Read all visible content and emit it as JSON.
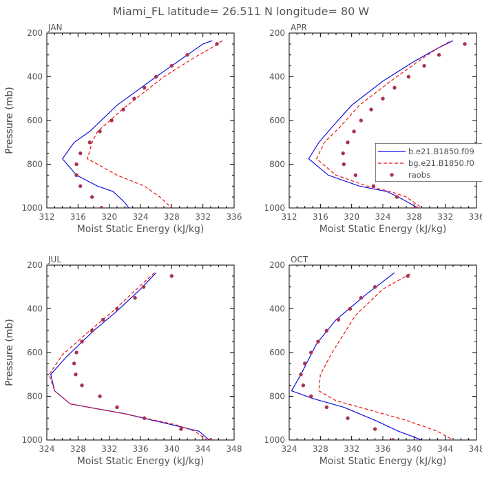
{
  "title": "Miami_FL   latitude= 26.511 N longitude= 80 W",
  "legend": {
    "entries": [
      "b.e21.B1850.f09",
      "bg.e21.B1850.f0",
      "raobs"
    ]
  },
  "colors": {
    "series1": "#1111dd",
    "series2": "#ee1111",
    "raobs": "#a83250",
    "text": "#555555"
  },
  "chart_data": [
    {
      "type": "line",
      "panel": "JAN",
      "xlabel": "Moist Static Energy (kJ/kg)",
      "ylabel": "Pressure (mb)",
      "xlim": [
        312,
        336
      ],
      "ylim": [
        200,
        1000
      ],
      "x_ticks": [
        312,
        316,
        320,
        324,
        328,
        332,
        336
      ],
      "y_ticks": [
        200,
        400,
        600,
        800,
        1000
      ],
      "y_inverted": true,
      "series": [
        {
          "style": "solid",
          "color": "#1111dd",
          "points": [
            [
              333.2,
              235
            ],
            [
              332,
              250
            ],
            [
              326,
              400
            ],
            [
              321,
              530
            ],
            [
              317.5,
              650
            ],
            [
              315.5,
              700
            ],
            [
              314,
              775
            ],
            [
              315.8,
              850
            ],
            [
              318.5,
              900
            ],
            [
              320.5,
              925
            ],
            [
              322,
              975
            ],
            [
              322.5,
              1000
            ]
          ]
        },
        {
          "style": "dashed",
          "color": "#ee1111",
          "points": [
            [
              334.5,
              235
            ],
            [
              333,
              270
            ],
            [
              331,
              310
            ],
            [
              327,
              400
            ],
            [
              322,
              540
            ],
            [
              318.5,
              650
            ],
            [
              317.8,
              700
            ],
            [
              317.2,
              775
            ],
            [
              318.5,
              800
            ],
            [
              321,
              850
            ],
            [
              324.5,
              900
            ],
            [
              326.5,
              950
            ],
            [
              328,
              1000
            ]
          ]
        },
        {
          "style": "points",
          "color": "#a83250",
          "points": [
            [
              333.8,
              250
            ],
            [
              330,
              300
            ],
            [
              328,
              350
            ],
            [
              326,
              400
            ],
            [
              324.5,
              450
            ],
            [
              323.2,
              500
            ],
            [
              321.8,
              550
            ],
            [
              320.3,
              600
            ],
            [
              318.8,
              650
            ],
            [
              317.5,
              700
            ],
            [
              316.3,
              750
            ],
            [
              315.8,
              800
            ],
            [
              315.8,
              850
            ],
            [
              316.3,
              900
            ],
            [
              317.8,
              950
            ],
            [
              319,
              1000
            ]
          ]
        }
      ]
    },
    {
      "type": "line",
      "panel": "APR",
      "xlabel": "Moist Static Energy (kJ/kg)",
      "ylabel": "Pressure (mb)",
      "xlim": [
        312,
        336
      ],
      "ylim": [
        200,
        1000
      ],
      "x_ticks": [
        312,
        316,
        320,
        324,
        328,
        332,
        336
      ],
      "y_ticks": [
        200,
        400,
        600,
        800,
        1000
      ],
      "y_inverted": true,
      "series": [
        {
          "style": "solid",
          "color": "#1111dd",
          "points": [
            [
              333,
              235
            ],
            [
              331,
              270
            ],
            [
              328,
              330
            ],
            [
              324,
              420
            ],
            [
              320,
              530
            ],
            [
              317.5,
              630
            ],
            [
              315.8,
              700
            ],
            [
              314.5,
              775
            ],
            [
              317,
              850
            ],
            [
              321,
              900
            ],
            [
              324.5,
              925
            ],
            [
              326,
              950
            ],
            [
              328.5,
              1000
            ]
          ]
        },
        {
          "style": "dashed",
          "color": "#ee1111",
          "points": [
            [
              332.5,
              240
            ],
            [
              331,
              270
            ],
            [
              328.5,
              330
            ],
            [
              325,
              420
            ],
            [
              321,
              530
            ],
            [
              318.5,
              630
            ],
            [
              316.5,
              700
            ],
            [
              315.5,
              775
            ],
            [
              318,
              850
            ],
            [
              322,
              900
            ],
            [
              325,
              925
            ],
            [
              327,
              950
            ],
            [
              329,
              1000
            ]
          ]
        },
        {
          "style": "points",
          "color": "#a83250",
          "points": [
            [
              334.5,
              250
            ],
            [
              331.2,
              300
            ],
            [
              329.3,
              350
            ],
            [
              327.3,
              400
            ],
            [
              325.5,
              450
            ],
            [
              324,
              500
            ],
            [
              322.5,
              550
            ],
            [
              321.2,
              600
            ],
            [
              320.3,
              650
            ],
            [
              319.5,
              700
            ],
            [
              318.9,
              750
            ],
            [
              319,
              800
            ],
            [
              320.5,
              850
            ],
            [
              322.8,
              900
            ],
            [
              325.8,
              950
            ],
            [
              328.2,
              1000
            ]
          ]
        }
      ]
    },
    {
      "type": "line",
      "panel": "JUL",
      "xlabel": "Moist Static Energy (kJ/kg)",
      "ylabel": "Pressure (mb)",
      "xlim": [
        324,
        348
      ],
      "ylim": [
        200,
        1000
      ],
      "x_ticks": [
        324,
        328,
        332,
        336,
        340,
        344,
        348
      ],
      "y_ticks": [
        200,
        400,
        600,
        800,
        1000
      ],
      "y_inverted": true,
      "series": [
        {
          "style": "solid",
          "color": "#1111dd",
          "points": [
            [
              338,
              235
            ],
            [
              336,
              310
            ],
            [
              333,
              410
            ],
            [
              330,
              500
            ],
            [
              326.5,
              620
            ],
            [
              324.5,
              700
            ],
            [
              325,
              775
            ],
            [
              327,
              835
            ],
            [
              334,
              880
            ],
            [
              340,
              930
            ],
            [
              343.5,
              960
            ],
            [
              344.8,
              1000
            ]
          ]
        },
        {
          "style": "dashed",
          "color": "#ee1111",
          "points": [
            [
              337.8,
              235
            ],
            [
              335.5,
              310
            ],
            [
              332.5,
              410
            ],
            [
              329.5,
              500
            ],
            [
              326,
              610
            ],
            [
              324.3,
              700
            ],
            [
              325,
              775
            ],
            [
              327,
              835
            ],
            [
              334,
              880
            ],
            [
              340.5,
              930
            ],
            [
              343,
              960
            ],
            [
              344.5,
              1000
            ]
          ]
        },
        {
          "style": "points",
          "color": "#a83250",
          "points": [
            [
              340,
              250
            ],
            [
              336.4,
              300
            ],
            [
              335.3,
              350
            ],
            [
              333,
              400
            ],
            [
              331.2,
              450
            ],
            [
              329.8,
              500
            ],
            [
              328.5,
              550
            ],
            [
              327.8,
              600
            ],
            [
              327.5,
              650
            ],
            [
              327.7,
              700
            ],
            [
              328.5,
              750
            ],
            [
              330.8,
              800
            ],
            [
              333,
              850
            ],
            [
              336.5,
              900
            ],
            [
              341.2,
              950
            ],
            [
              345,
              1000
            ]
          ]
        }
      ]
    },
    {
      "type": "line",
      "panel": "OCT",
      "xlabel": "Moist Static Energy (kJ/kg)",
      "ylabel": "Pressure (mb)",
      "xlim": [
        324,
        348
      ],
      "ylim": [
        200,
        1000
      ],
      "x_ticks": [
        324,
        328,
        332,
        336,
        340,
        344,
        348
      ],
      "y_ticks": [
        200,
        400,
        600,
        800,
        1000
      ],
      "y_inverted": true,
      "series": [
        {
          "style": "solid",
          "color": "#1111dd",
          "points": [
            [
              337.5,
              235
            ],
            [
              334,
              330
            ],
            [
              330,
              450
            ],
            [
              327.5,
              560
            ],
            [
              325.5,
              700
            ],
            [
              324.3,
              775
            ],
            [
              327,
              810
            ],
            [
              331,
              850
            ],
            [
              335,
              910
            ],
            [
              338,
              960
            ],
            [
              341,
              1000
            ]
          ]
        },
        {
          "style": "dashed",
          "color": "#ee1111",
          "points": [
            [
              339.5,
              240
            ],
            [
              336,
              310
            ],
            [
              332.5,
              430
            ],
            [
              329.5,
              600
            ],
            [
              328,
              700
            ],
            [
              327.8,
              775
            ],
            [
              330,
              820
            ],
            [
              334,
              860
            ],
            [
              339,
              910
            ],
            [
              343,
              960
            ],
            [
              345,
              1000
            ]
          ]
        },
        {
          "style": "points",
          "color": "#a83250",
          "points": [
            [
              339.2,
              250
            ],
            [
              335,
              300
            ],
            [
              333.2,
              350
            ],
            [
              331.8,
              400
            ],
            [
              330.3,
              450
            ],
            [
              328.8,
              500
            ],
            [
              327.7,
              550
            ],
            [
              326.8,
              600
            ],
            [
              326,
              650
            ],
            [
              325.5,
              700
            ],
            [
              325.8,
              750
            ],
            [
              326.8,
              800
            ],
            [
              328.8,
              850
            ],
            [
              331.5,
              900
            ],
            [
              335,
              950
            ],
            [
              337.3,
              1000
            ]
          ]
        }
      ]
    }
  ]
}
